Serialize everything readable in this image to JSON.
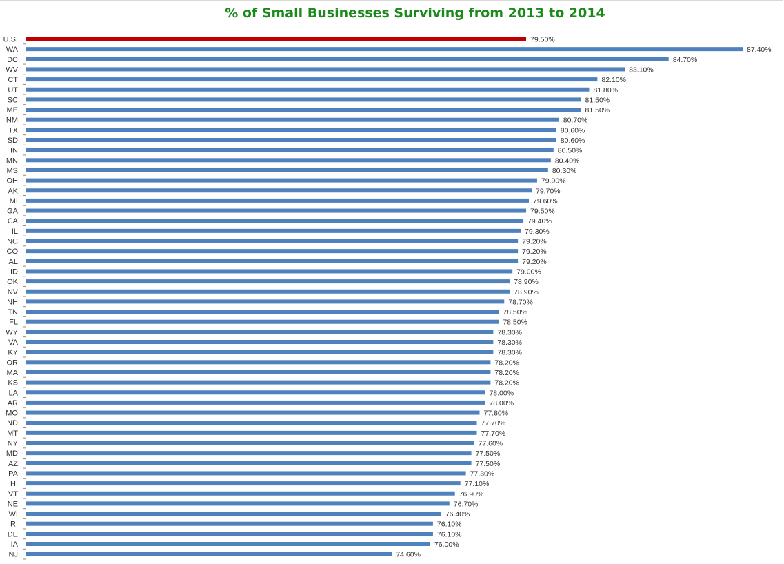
{
  "chart_data": {
    "type": "bar",
    "orientation": "horizontal",
    "title": "% of Small Businesses Surviving from 2013 to 2014",
    "xlabel": "",
    "ylabel": "",
    "xlim": [
      61.23,
      87.4
    ],
    "grid": false,
    "legend": "none",
    "colors": {
      "highlight": "#c00000",
      "default": "#4f81bd",
      "title": "#1a8a1a"
    },
    "categories": [
      "U.S.",
      "WA",
      "DC",
      "WV",
      "CT",
      "UT",
      "SC",
      "ME",
      "NM",
      "TX",
      "SD",
      "IN",
      "MN",
      "MS",
      "OH",
      "AK",
      "MI",
      "GA",
      "CA",
      "IL",
      "NC",
      "CO",
      "AL",
      "ID",
      "OK",
      "NV",
      "NH",
      "TN",
      "FL",
      "WY",
      "VA",
      "KY",
      "OR",
      "MA",
      "KS",
      "LA",
      "AR",
      "MO",
      "ND",
      "MT",
      "NY",
      "MD",
      "AZ",
      "PA",
      "HI",
      "VT",
      "NE",
      "WI",
      "RI",
      "DE",
      "IA",
      "NJ"
    ],
    "values": [
      79.5,
      87.4,
      84.7,
      83.1,
      82.1,
      81.8,
      81.5,
      81.5,
      80.7,
      80.6,
      80.6,
      80.5,
      80.4,
      80.3,
      79.9,
      79.7,
      79.6,
      79.5,
      79.4,
      79.3,
      79.2,
      79.2,
      79.2,
      79.0,
      78.9,
      78.9,
      78.7,
      78.5,
      78.5,
      78.3,
      78.3,
      78.3,
      78.2,
      78.2,
      78.2,
      78.0,
      78.0,
      77.8,
      77.7,
      77.7,
      77.6,
      77.5,
      77.5,
      77.3,
      77.1,
      76.9,
      76.7,
      76.4,
      76.1,
      76.1,
      76.0,
      74.6
    ],
    "data_labels": [
      "79.50%",
      "87.40%",
      "84.70%",
      "83.10%",
      "82.10%",
      "81.80%",
      "81.50%",
      "81.50%",
      "80.70%",
      "80.60%",
      "80.60%",
      "80.50%",
      "80.40%",
      "80.30%",
      "79.90%",
      "79.70%",
      "79.60%",
      "79.50%",
      "79.40%",
      "79.30%",
      "79.20%",
      "79.20%",
      "79.20%",
      "79.00%",
      "78.90%",
      "78.90%",
      "78.70%",
      "78.50%",
      "78.50%",
      "78.30%",
      "78.30%",
      "78.30%",
      "78.20%",
      "78.20%",
      "78.20%",
      "78.00%",
      "78.00%",
      "77.80%",
      "77.70%",
      "77.70%",
      "77.60%",
      "77.50%",
      "77.50%",
      "77.30%",
      "77.10%",
      "76.90%",
      "76.70%",
      "76.40%",
      "76.10%",
      "76.10%",
      "76.00%",
      "74.60%"
    ],
    "highlight_category": "U.S."
  }
}
